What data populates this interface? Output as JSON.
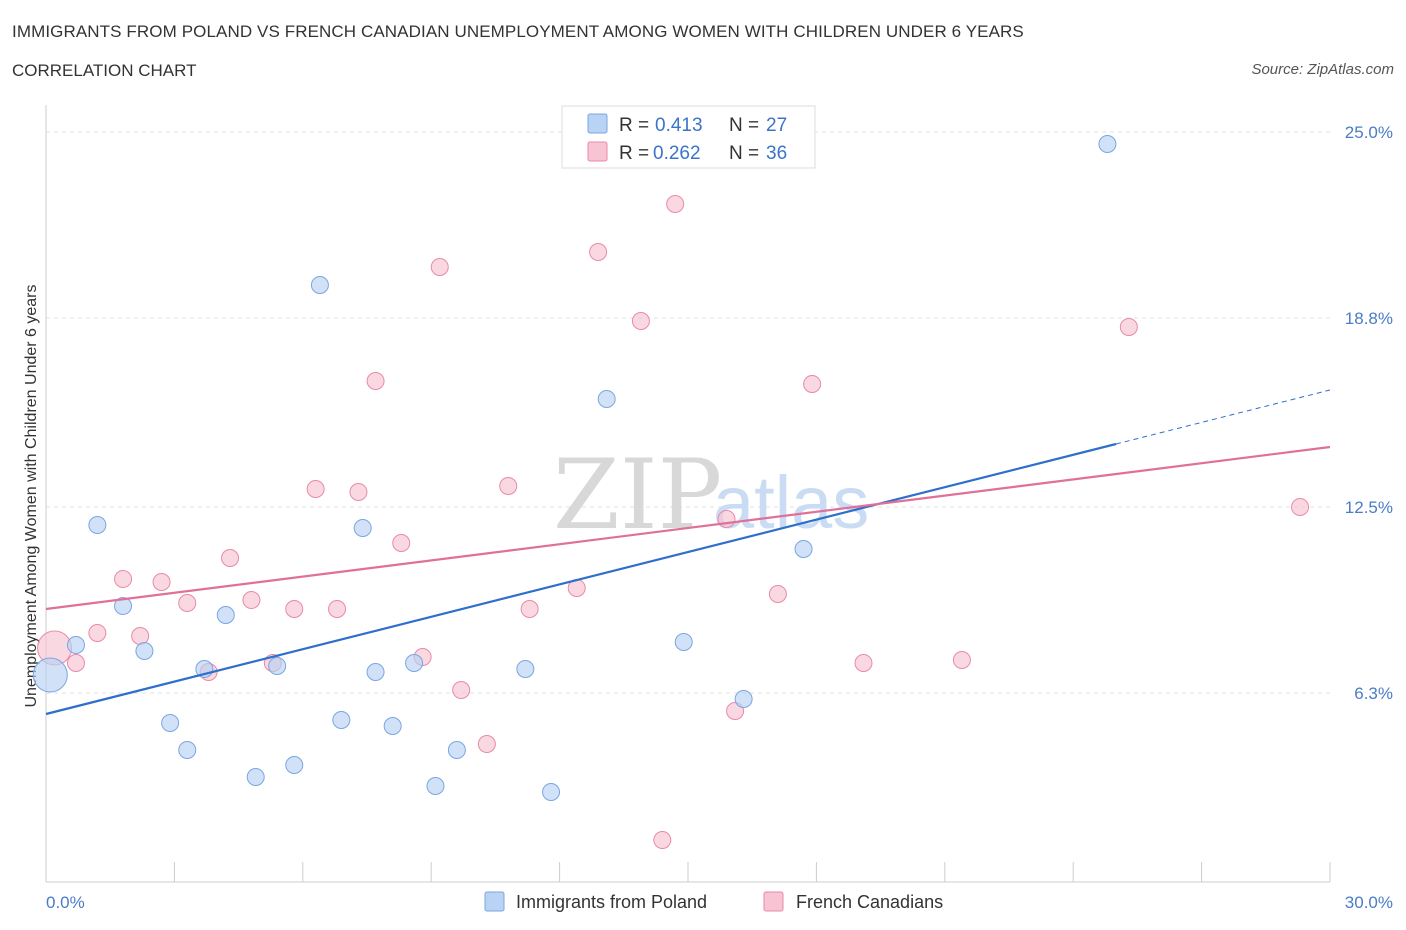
{
  "title": "IMMIGRANTS FROM POLAND VS FRENCH CANADIAN UNEMPLOYMENT AMONG WOMEN WITH CHILDREN UNDER 6 YEARS",
  "subtitle": "CORRELATION CHART",
  "source": "Source: ZipAtlas.com",
  "watermark": {
    "zip": "ZIP",
    "atlas": "atlas"
  },
  "legend": {
    "rows": [
      {
        "r_label": "R =",
        "r_value": "0.413",
        "n_label": "N =",
        "n_value": "27"
      },
      {
        "r_label": "R =",
        "r_value": "0.262",
        "n_label": "N =",
        "n_value": "36"
      }
    ]
  },
  "colors": {
    "poland_fill": "#b9d3f5",
    "poland_stroke": "#7aa6e0",
    "poland_line": "#2f6fcc",
    "french_fill": "#f8c3d3",
    "french_stroke": "#e88aaa",
    "french_line": "#e07098",
    "grid": "#e2e2e2",
    "tick_label": "#4a7cc7"
  },
  "chart_data": {
    "type": "scatter",
    "title": "IMMIGRANTS FROM POLAND VS FRENCH CANADIAN UNEMPLOYMENT AMONG WOMEN WITH CHILDREN UNDER 6 YEARS",
    "xlabel": "",
    "ylabel": "Unemployment Among Women with Children Under 6 years",
    "xlim": [
      0,
      30
    ],
    "ylim": [
      0,
      25.5
    ],
    "x_tick_labels": [
      "0.0%",
      "30.0%"
    ],
    "y_ticks": [
      6.3,
      12.5,
      18.8,
      25.0
    ],
    "y_tick_labels": [
      "6.3%",
      "12.5%",
      "18.8%",
      "25.0%"
    ],
    "grid": true,
    "legend_position": "top-center",
    "series": [
      {
        "name": "Immigrants from Poland",
        "r": 0.413,
        "n": 27,
        "points": [
          {
            "x": 0.1,
            "y": 6.9,
            "size": "large"
          },
          {
            "x": 0.7,
            "y": 7.9
          },
          {
            "x": 1.2,
            "y": 11.9
          },
          {
            "x": 1.8,
            "y": 9.2
          },
          {
            "x": 2.3,
            "y": 7.7
          },
          {
            "x": 2.9,
            "y": 5.3
          },
          {
            "x": 3.3,
            "y": 4.4
          },
          {
            "x": 3.7,
            "y": 7.1
          },
          {
            "x": 4.2,
            "y": 8.9
          },
          {
            "x": 4.9,
            "y": 3.5
          },
          {
            "x": 5.4,
            "y": 7.2
          },
          {
            "x": 5.8,
            "y": 3.9
          },
          {
            "x": 6.4,
            "y": 19.9
          },
          {
            "x": 6.9,
            "y": 5.4
          },
          {
            "x": 7.4,
            "y": 11.8
          },
          {
            "x": 7.7,
            "y": 7.0
          },
          {
            "x": 8.1,
            "y": 5.2
          },
          {
            "x": 8.6,
            "y": 7.3
          },
          {
            "x": 9.1,
            "y": 3.2
          },
          {
            "x": 9.6,
            "y": 4.4
          },
          {
            "x": 11.2,
            "y": 7.1
          },
          {
            "x": 11.8,
            "y": 3.0
          },
          {
            "x": 13.1,
            "y": 16.1
          },
          {
            "x": 14.9,
            "y": 8.0
          },
          {
            "x": 16.3,
            "y": 6.1
          },
          {
            "x": 17.7,
            "y": 11.1
          },
          {
            "x": 24.8,
            "y": 24.6
          }
        ],
        "trend": {
          "x0": 0,
          "y0": 5.6,
          "x1": 25.0,
          "y1": 14.6,
          "dashed_to_x": 30,
          "dashed_to_y": 16.4
        }
      },
      {
        "name": "French Canadians",
        "r": 0.262,
        "n": 36,
        "points": [
          {
            "x": 0.2,
            "y": 7.8,
            "size": "large"
          },
          {
            "x": 0.7,
            "y": 7.3
          },
          {
            "x": 1.2,
            "y": 8.3
          },
          {
            "x": 1.8,
            "y": 10.1
          },
          {
            "x": 2.2,
            "y": 8.2
          },
          {
            "x": 2.7,
            "y": 10.0
          },
          {
            "x": 3.3,
            "y": 9.3
          },
          {
            "x": 3.8,
            "y": 7.0
          },
          {
            "x": 4.3,
            "y": 10.8
          },
          {
            "x": 4.8,
            "y": 9.4
          },
          {
            "x": 5.3,
            "y": 7.3
          },
          {
            "x": 5.8,
            "y": 9.1
          },
          {
            "x": 6.3,
            "y": 13.1
          },
          {
            "x": 6.8,
            "y": 9.1
          },
          {
            "x": 7.3,
            "y": 13.0
          },
          {
            "x": 7.7,
            "y": 16.7
          },
          {
            "x": 8.3,
            "y": 11.3
          },
          {
            "x": 8.8,
            "y": 7.5
          },
          {
            "x": 9.2,
            "y": 20.5
          },
          {
            "x": 9.7,
            "y": 6.4
          },
          {
            "x": 10.3,
            "y": 4.6
          },
          {
            "x": 10.8,
            "y": 13.2
          },
          {
            "x": 11.3,
            "y": 9.1
          },
          {
            "x": 12.4,
            "y": 9.8
          },
          {
            "x": 12.9,
            "y": 21.0
          },
          {
            "x": 13.9,
            "y": 18.7
          },
          {
            "x": 14.4,
            "y": 1.4
          },
          {
            "x": 14.7,
            "y": 22.6
          },
          {
            "x": 15.9,
            "y": 12.1
          },
          {
            "x": 16.1,
            "y": 5.7
          },
          {
            "x": 17.1,
            "y": 9.6
          },
          {
            "x": 17.9,
            "y": 16.6
          },
          {
            "x": 19.1,
            "y": 7.3
          },
          {
            "x": 21.4,
            "y": 7.4
          },
          {
            "x": 25.3,
            "y": 18.5
          },
          {
            "x": 29.3,
            "y": 12.5
          }
        ],
        "trend": {
          "x0": 0,
          "y0": 9.1,
          "x1": 30.0,
          "y1": 14.5
        }
      }
    ]
  },
  "bottom_legend": [
    "Immigrants from Poland",
    "French Canadians"
  ]
}
